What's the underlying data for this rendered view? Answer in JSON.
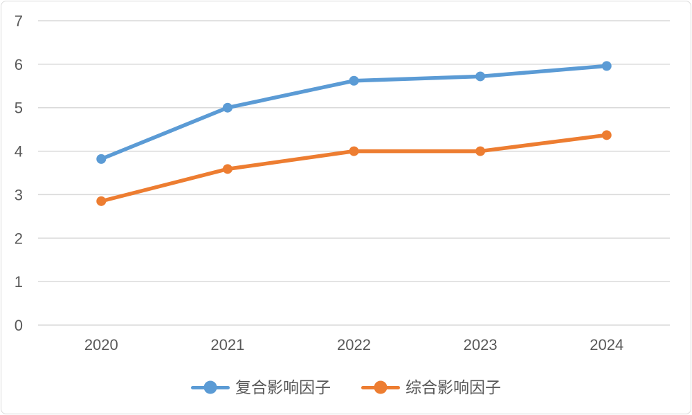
{
  "chart_data": {
    "type": "line",
    "title": "",
    "xlabel": "",
    "ylabel": "",
    "categories": [
      "2020",
      "2021",
      "2022",
      "2023",
      "2024"
    ],
    "series": [
      {
        "name": "复合影响因子",
        "color": "#5B9BD5",
        "values": [
          3.82,
          5.0,
          5.62,
          5.72,
          5.96
        ]
      },
      {
        "name": "综合影响因子",
        "color": "#ED7D31",
        "values": [
          2.85,
          3.59,
          4.0,
          4.0,
          4.37
        ]
      }
    ],
    "ylim": [
      0,
      7
    ],
    "yticks": [
      0,
      1,
      2,
      3,
      4,
      5,
      6,
      7
    ],
    "grid": true,
    "legend_position": "bottom"
  },
  "styles": {
    "grid_color": "#D9D9D9",
    "axis_text_color": "#595959",
    "frame_border_color": "#D9D9D9",
    "background": "#FFFFFF"
  }
}
